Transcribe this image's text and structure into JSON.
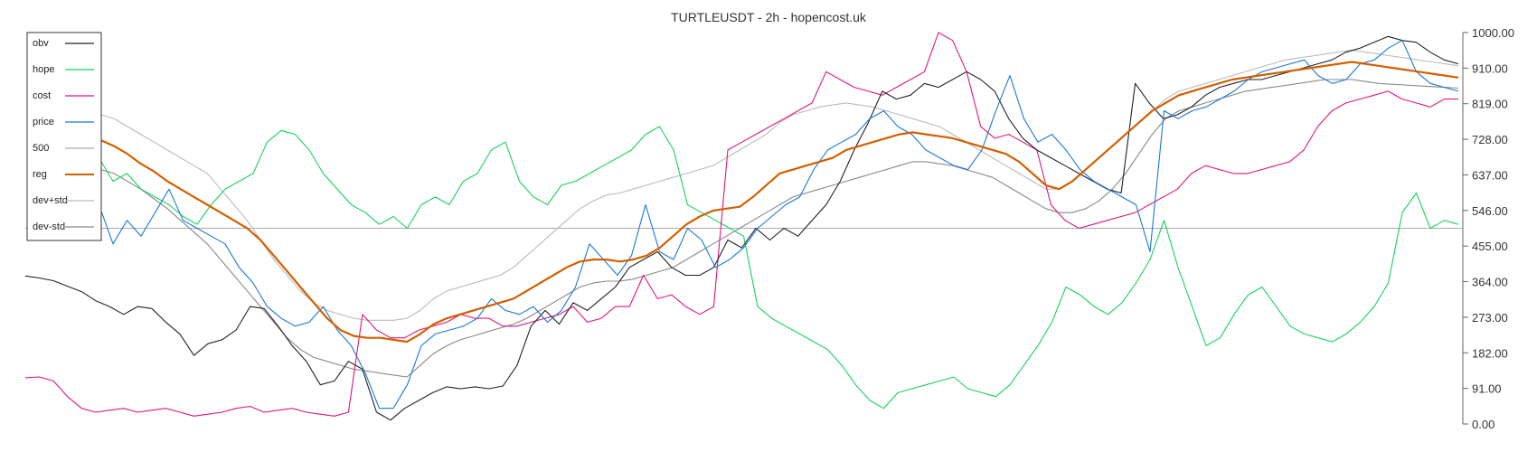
{
  "chart_data": {
    "type": "line",
    "title": "TURTLEUSDT - 2h - hopencost.uk",
    "xlabel": "",
    "ylabel": "",
    "ylim": [
      0,
      1000
    ],
    "y_ticks": [
      "1000.00",
      "910.00",
      "819.00",
      "728.00",
      "637.00",
      "546.00",
      "455.00",
      "364.00",
      "273.00",
      "182.00",
      "91.00",
      "0.00"
    ],
    "grid": false,
    "legend_position": "top-left",
    "reference_line": 500,
    "legend": [
      "obv",
      "hope",
      "cost",
      "price",
      "500",
      "reg",
      "dev+std",
      "dev-std"
    ],
    "colors": {
      "obv": "#222222",
      "hope": "#19d15a",
      "cost": "#e0157f",
      "price": "#1a78d6",
      "500": "#aaaaaa",
      "reg": "#d35f00",
      "dev+std": "#bbbbbb",
      "dev-std": "#888888"
    },
    "series": [
      {
        "name": "obv",
        "values": [
          378,
          373,
          366,
          352,
          338,
          315,
          300,
          280,
          300,
          295,
          260,
          230,
          175,
          205,
          215,
          240,
          300,
          295,
          250,
          200,
          160,
          100,
          110,
          160,
          140,
          30,
          10,
          40,
          60,
          80,
          95,
          90,
          95,
          90,
          97,
          150,
          250,
          290,
          255,
          310,
          290,
          320,
          350,
          400,
          420,
          440,
          400,
          380,
          380,
          400,
          470,
          450,
          500,
          470,
          500,
          480,
          520,
          560,
          620,
          700,
          770,
          850,
          830,
          840,
          870,
          860,
          880,
          900,
          880,
          850,
          780,
          730,
          700,
          680,
          660,
          640,
          620,
          600,
          590,
          870,
          820,
          780,
          790,
          810,
          840,
          860,
          870,
          880,
          880,
          890,
          900,
          910,
          920,
          930,
          950,
          960,
          975,
          990,
          980,
          975,
          950,
          930,
          920
        ]
      },
      {
        "name": "hope",
        "values": [
          700,
          780,
          790,
          730,
          750,
          680,
          620,
          640,
          600,
          580,
          560,
          530,
          510,
          560,
          600,
          620,
          640,
          720,
          750,
          740,
          700,
          640,
          600,
          560,
          540,
          510,
          530,
          500,
          560,
          580,
          560,
          620,
          640,
          700,
          720,
          620,
          580,
          560,
          610,
          620,
          640,
          660,
          680,
          700,
          740,
          760,
          700,
          560,
          540,
          520,
          500,
          480,
          300,
          270,
          250,
          230,
          210,
          190,
          150,
          100,
          60,
          40,
          80,
          90,
          100,
          110,
          120,
          90,
          80,
          70,
          100,
          150,
          200,
          260,
          350,
          330,
          300,
          280,
          310,
          360,
          420,
          520,
          400,
          300,
          200,
          220,
          280,
          330,
          350,
          300,
          250,
          230,
          220,
          210,
          230,
          260,
          300,
          360,
          540,
          590,
          500,
          520,
          510
        ]
      },
      {
        "name": "cost",
        "values": [
          118,
          120,
          110,
          70,
          40,
          30,
          35,
          40,
          30,
          35,
          40,
          30,
          20,
          25,
          30,
          40,
          45,
          30,
          35,
          40,
          30,
          25,
          20,
          30,
          280,
          240,
          220,
          220,
          240,
          250,
          260,
          280,
          270,
          270,
          250,
          250,
          260,
          270,
          280,
          300,
          260,
          270,
          300,
          300,
          380,
          320,
          330,
          300,
          280,
          300,
          700,
          720,
          740,
          760,
          780,
          800,
          820,
          900,
          880,
          860,
          850,
          840,
          860,
          880,
          900,
          1000,
          980,
          900,
          760,
          730,
          740,
          720,
          700,
          560,
          520,
          500,
          510,
          520,
          530,
          540,
          560,
          580,
          600,
          640,
          660,
          650,
          640,
          640,
          650,
          660,
          670,
          700,
          760,
          800,
          820,
          830,
          840,
          850,
          830,
          820,
          810,
          830,
          830
        ]
      },
      {
        "name": "price",
        "values": [
          620,
          650,
          700,
          690,
          650,
          560,
          460,
          520,
          480,
          540,
          600,
          520,
          500,
          480,
          460,
          400,
          360,
          300,
          270,
          250,
          260,
          300,
          240,
          200,
          130,
          40,
          40,
          100,
          200,
          230,
          240,
          250,
          270,
          320,
          290,
          280,
          300,
          260,
          290,
          350,
          460,
          420,
          380,
          430,
          560,
          440,
          420,
          500,
          470,
          400,
          420,
          450,
          500,
          530,
          560,
          580,
          650,
          700,
          720,
          740,
          780,
          800,
          760,
          740,
          700,
          680,
          660,
          650,
          700,
          800,
          890,
          780,
          720,
          740,
          700,
          650,
          620,
          600,
          580,
          560,
          440,
          800,
          780,
          800,
          810,
          830,
          850,
          880,
          900,
          910,
          920,
          930,
          890,
          870,
          880,
          920,
          930,
          960,
          980,
          900,
          870,
          860,
          850
        ]
      },
      {
        "name": "reg",
        "values": [
          725,
          710,
          690,
          665,
          645,
          620,
          600,
          580,
          560,
          540,
          520,
          500,
          470,
          430,
          390,
          350,
          310,
          270,
          240,
          225,
          220,
          220,
          215,
          210,
          230,
          255,
          270,
          280,
          290,
          300,
          310,
          320,
          340,
          360,
          380,
          400,
          415,
          420,
          420,
          415,
          420,
          430,
          450,
          480,
          510,
          530,
          545,
          550,
          555,
          580,
          610,
          640,
          650,
          660,
          670,
          680,
          700,
          710,
          720,
          730,
          740,
          745,
          740,
          735,
          730,
          720,
          710,
          700,
          690,
          670,
          640,
          610,
          600,
          620,
          650,
          680,
          710,
          740,
          770,
          800,
          820,
          840,
          850,
          860,
          870,
          880,
          885,
          890,
          895,
          900,
          905,
          910,
          915,
          920,
          925,
          920,
          915,
          910,
          905,
          900,
          895,
          890,
          885
        ]
      },
      {
        "name": "dev+std",
        "values": [
          790,
          780,
          760,
          740,
          720,
          700,
          680,
          660,
          640,
          600,
          560,
          520,
          470,
          420,
          380,
          340,
          310,
          290,
          280,
          270,
          265,
          265,
          265,
          270,
          290,
          320,
          340,
          350,
          360,
          370,
          380,
          400,
          430,
          460,
          490,
          520,
          550,
          570,
          585,
          590,
          600,
          610,
          620,
          630,
          640,
          650,
          660,
          680,
          700,
          720,
          740,
          770,
          790,
          800,
          810,
          815,
          820,
          815,
          810,
          800,
          790,
          780,
          770,
          760,
          740,
          720,
          700,
          680,
          660,
          640,
          620,
          600,
          600,
          620,
          650,
          680,
          710,
          740,
          770,
          800,
          830,
          850,
          860,
          870,
          880,
          890,
          900,
          910,
          920,
          930,
          935,
          940,
          945,
          950,
          955,
          950,
          945,
          940,
          935,
          930,
          925,
          920,
          915
        ]
      },
      {
        "name": "dev-std",
        "values": [
          650,
          640,
          620,
          600,
          575,
          550,
          520,
          490,
          460,
          420,
          380,
          340,
          300,
          260,
          220,
          190,
          170,
          160,
          150,
          140,
          135,
          130,
          125,
          120,
          150,
          180,
          200,
          215,
          225,
          235,
          245,
          255,
          270,
          290,
          310,
          330,
          350,
          360,
          365,
          365,
          370,
          380,
          390,
          400,
          420,
          440,
          460,
          480,
          500,
          520,
          540,
          560,
          580,
          590,
          600,
          610,
          620,
          630,
          640,
          650,
          660,
          670,
          670,
          665,
          660,
          650,
          640,
          630,
          610,
          590,
          570,
          550,
          540,
          540,
          550,
          570,
          600,
          640,
          690,
          740,
          780,
          800,
          810,
          820,
          830,
          840,
          850,
          855,
          860,
          865,
          870,
          875,
          880,
          880,
          880,
          875,
          870,
          868,
          866,
          864,
          862,
          860,
          858
        ]
      }
    ]
  }
}
